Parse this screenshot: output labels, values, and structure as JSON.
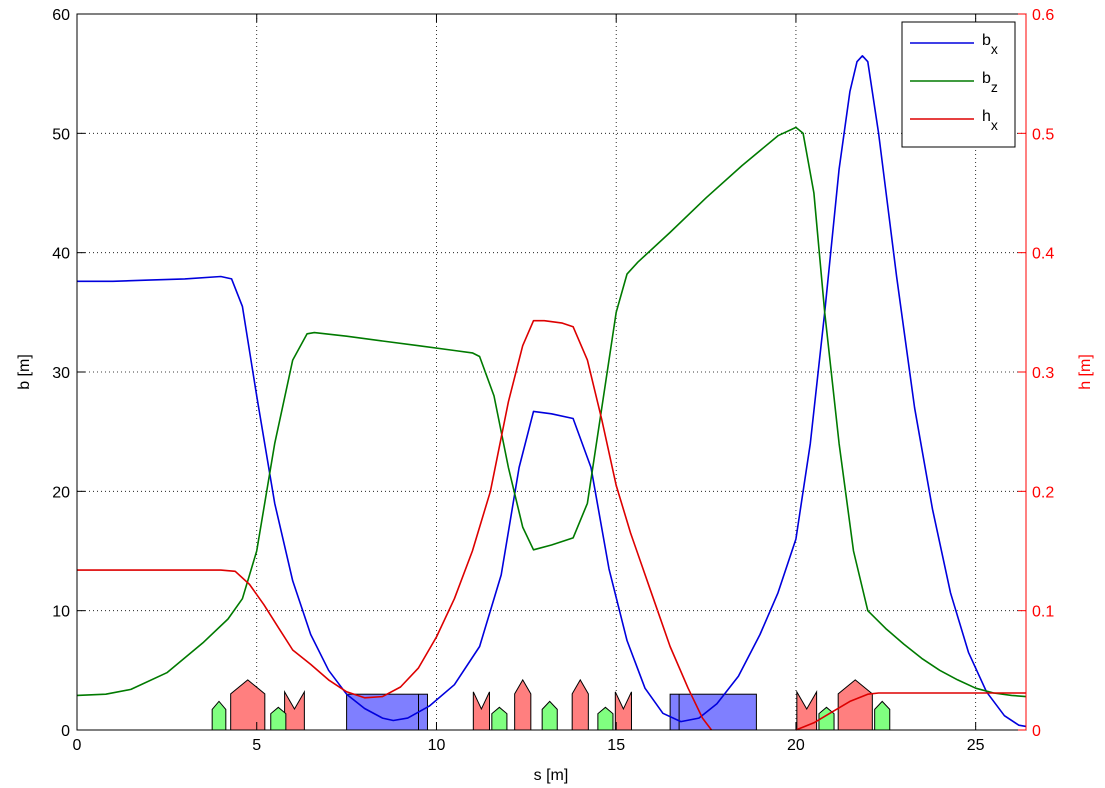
{
  "chart_data": {
    "type": "line",
    "xlabel": "s [m]",
    "ylabel_left": "b [m]",
    "ylabel_right": "h [m]",
    "xlim": [
      0,
      26.4
    ],
    "ylim_left": [
      0,
      60
    ],
    "ylim_right": [
      0,
      0.6
    ],
    "x_ticks": [
      0,
      5,
      10,
      15,
      20,
      25
    ],
    "y_ticks_left": [
      0,
      10,
      20,
      30,
      40,
      50,
      60
    ],
    "y_ticks_right": [
      0,
      0.1,
      0.2,
      0.3,
      0.4,
      0.5,
      0.6
    ],
    "grid": true,
    "grid_style": "dotted",
    "legend_position": "top-right",
    "legend": [
      {
        "base": "b",
        "sub": "x",
        "color": "#0000dd"
      },
      {
        "base": "b",
        "sub": "z",
        "color": "#007a00"
      },
      {
        "base": "h",
        "sub": "x",
        "color": "#dd0000"
      }
    ],
    "series": [
      {
        "name": "bx",
        "axis": "left",
        "color": "#0000dd",
        "x": [
          0,
          1,
          2,
          3,
          4,
          4.3,
          4.6,
          5,
          5.5,
          6,
          6.5,
          7,
          7.5,
          8,
          8.5,
          8.8,
          9.2,
          9.8,
          10.5,
          11.2,
          11.8,
          12.3,
          12.7,
          13.2,
          13.8,
          14.3,
          14.8,
          15.3,
          15.8,
          16.3,
          16.8,
          17.3,
          17.8,
          18.4,
          19.0,
          19.5,
          20.0,
          20.4,
          20.8,
          21.2,
          21.5,
          21.7,
          21.85,
          22.0,
          22.3,
          22.8,
          23.3,
          23.8,
          24.3,
          24.8,
          25.3,
          25.8,
          26.2,
          26.4
        ],
        "values": [
          37.6,
          37.6,
          37.7,
          37.8,
          38.0,
          37.8,
          35.5,
          28.0,
          19.0,
          12.5,
          8.0,
          5.0,
          3.0,
          1.8,
          1.0,
          0.8,
          1.0,
          2.0,
          3.8,
          7.0,
          13.0,
          22.0,
          26.7,
          26.5,
          26.1,
          22.0,
          13.5,
          7.5,
          3.5,
          1.4,
          0.7,
          1.0,
          2.2,
          4.5,
          8.0,
          11.5,
          16.0,
          24.0,
          35.0,
          47.0,
          53.5,
          56.0,
          56.5,
          56.0,
          50.0,
          38.0,
          27.0,
          18.5,
          11.5,
          6.5,
          3.2,
          1.2,
          0.4,
          0.3
        ]
      },
      {
        "name": "bz",
        "axis": "left",
        "color": "#007a00",
        "x": [
          0,
          0.8,
          1.5,
          2.5,
          3.5,
          4.2,
          4.6,
          5.0,
          5.5,
          6.0,
          6.4,
          6.6,
          7.5,
          8.5,
          9.5,
          10.5,
          11.0,
          11.2,
          11.6,
          12.0,
          12.4,
          12.7,
          13.2,
          13.8,
          14.2,
          14.6,
          15.0,
          15.3,
          15.6,
          16.5,
          17.5,
          18.5,
          19.5,
          20.0,
          20.2,
          20.5,
          20.8,
          21.2,
          21.6,
          22.0,
          22.5,
          23.0,
          23.5,
          24.0,
          24.5,
          25.0,
          25.5,
          26.0,
          26.4
        ],
        "values": [
          2.9,
          3.0,
          3.4,
          4.8,
          7.3,
          9.3,
          11.0,
          15.0,
          24.0,
          31.0,
          33.2,
          33.3,
          33.0,
          32.6,
          32.2,
          31.8,
          31.6,
          31.3,
          28.0,
          22.0,
          17.0,
          15.1,
          15.5,
          16.1,
          19.0,
          27.0,
          35.0,
          38.2,
          39.2,
          41.7,
          44.6,
          47.3,
          49.8,
          50.5,
          50.0,
          45.0,
          35.0,
          24.0,
          15.0,
          10.0,
          8.5,
          7.2,
          6.0,
          5.0,
          4.2,
          3.5,
          3.1,
          2.9,
          2.8
        ]
      },
      {
        "name": "hx",
        "axis": "right",
        "color": "#dd0000",
        "x": [
          0,
          1,
          2,
          3,
          4,
          4.4,
          4.8,
          5.2,
          5.6,
          6.0,
          6.5,
          7.0,
          7.5,
          8.0,
          8.5,
          9.0,
          9.5,
          10.0,
          10.5,
          11.0,
          11.5,
          12.0,
          12.4,
          12.7,
          13.0,
          13.5,
          13.8,
          14.2,
          14.6,
          15.0,
          15.4,
          16.0,
          16.5,
          17.0,
          17.4,
          17.65
        ],
        "values": [
          0.134,
          0.134,
          0.134,
          0.134,
          0.134,
          0.133,
          0.122,
          0.105,
          0.086,
          0.067,
          0.055,
          0.042,
          0.032,
          0.027,
          0.028,
          0.036,
          0.052,
          0.078,
          0.11,
          0.15,
          0.2,
          0.275,
          0.322,
          0.343,
          0.343,
          0.341,
          0.338,
          0.31,
          0.26,
          0.205,
          0.165,
          0.113,
          0.07,
          0.035,
          0.01,
          0.0
        ]
      },
      {
        "name": "hx-tail",
        "axis": "right",
        "color": "#dd0000",
        "x": [
          20.0,
          20.5,
          21.0,
          21.5,
          22.0,
          22.3,
          23.0,
          24.0,
          25.0,
          26.4
        ],
        "values": [
          0.0,
          0.006,
          0.015,
          0.024,
          0.03,
          0.031,
          0.031,
          0.031,
          0.031,
          0.031
        ]
      }
    ],
    "lattice": {
      "dipoles": [
        {
          "start": 7.5,
          "end": 9.75,
          "inner_edge": 9.5
        },
        {
          "start": 16.5,
          "end": 18.9,
          "inner_edge": 16.75
        }
      ],
      "quads_focusing": [
        {
          "center": 4.75,
          "width": 0.95,
          "height": 4.2
        },
        {
          "center": 12.4,
          "width": 0.45,
          "height": 4.2
        },
        {
          "center": 14.0,
          "width": 0.45,
          "height": 4.2
        },
        {
          "center": 21.65,
          "width": 0.95,
          "height": 4.2
        }
      ],
      "sextupoles_focusing": [
        {
          "center": 6.05,
          "width": 0.55,
          "height": 3.2
        },
        {
          "center": 11.25,
          "width": 0.45,
          "height": 3.2
        },
        {
          "center": 15.2,
          "width": 0.45,
          "height": 3.2
        },
        {
          "center": 20.3,
          "width": 0.55,
          "height": 3.2
        }
      ],
      "quads_defocusing": [
        {
          "center": 3.95,
          "width": 0.38,
          "height": 2.4
        },
        {
          "center": 5.6,
          "width": 0.42,
          "height": 1.9
        },
        {
          "center": 11.75,
          "width": 0.42,
          "height": 1.9
        },
        {
          "center": 13.15,
          "width": 0.42,
          "height": 2.4
        },
        {
          "center": 14.7,
          "width": 0.42,
          "height": 1.9
        },
        {
          "center": 20.85,
          "width": 0.42,
          "height": 1.9
        },
        {
          "center": 22.4,
          "width": 0.42,
          "height": 2.4
        }
      ]
    },
    "colors": {
      "axis": "#000000",
      "grid": "#000000",
      "right_axis": "#ff0000",
      "dipole_fill": "#7f7fff",
      "quad_f_fill": "#ff7f7f",
      "quad_d_fill": "#80ff80"
    }
  }
}
